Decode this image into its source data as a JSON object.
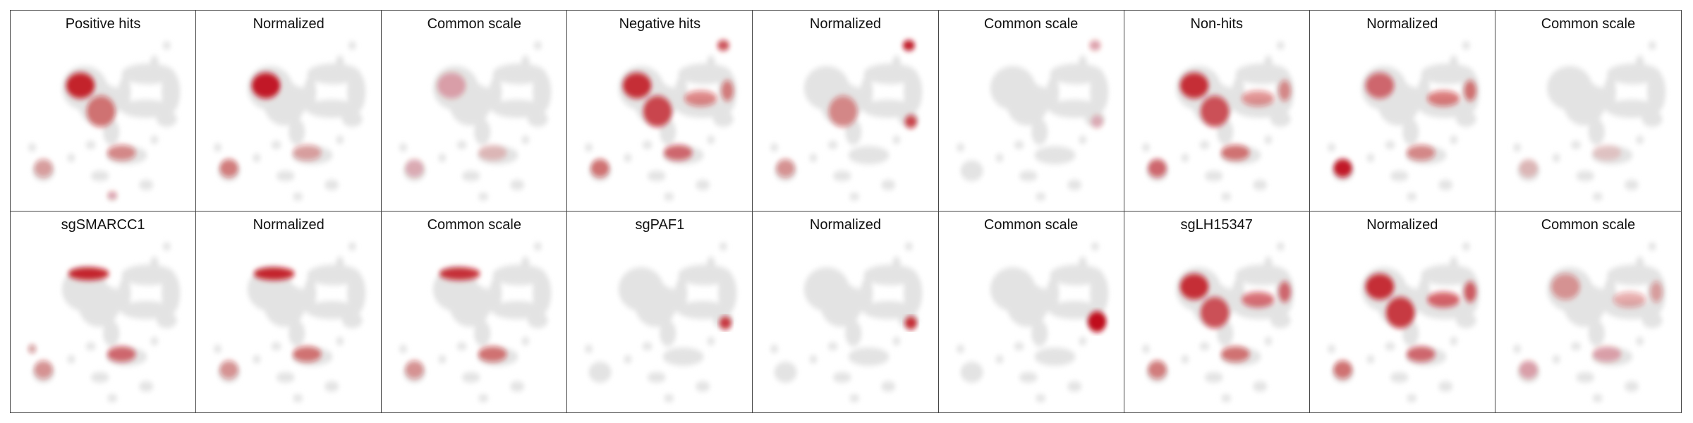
{
  "figure": {
    "base_color": "#e3e3e3",
    "hit_color": "#c0111a"
  },
  "chart_data": [
    {
      "type": "heatmap",
      "title": "Positive hits",
      "highlight_regions": [
        "anterior-left-lobe",
        "left-center",
        "lower-middle-band",
        "far-left-cluster",
        "bottom-small-cluster"
      ],
      "intensity": [
        0.9,
        0.55,
        0.45,
        0.35,
        0.3
      ]
    },
    {
      "type": "heatmap",
      "title": "Normalized",
      "highlight_regions": [
        "anterior-left-lobe",
        "far-left-cluster",
        "lower-middle-band"
      ],
      "intensity": [
        0.95,
        0.5,
        0.35
      ]
    },
    {
      "type": "heatmap",
      "title": "Common scale",
      "highlight_regions": [
        "anterior-left-lobe",
        "far-left-cluster",
        "lower-middle-band"
      ],
      "intensity": [
        0.3,
        0.25,
        0.2
      ]
    },
    {
      "type": "heatmap",
      "title": "Negative hits",
      "highlight_regions": [
        "anterior-left-lobe",
        "left-center",
        "lower-middle-band",
        "far-left-cluster",
        "top-right-blob",
        "right-bridge"
      ],
      "intensity": [
        0.85,
        0.75,
        0.6,
        0.55,
        0.7,
        0.5
      ]
    },
    {
      "type": "heatmap",
      "title": "Normalized",
      "highlight_regions": [
        "top-right-blob",
        "right-arm",
        "left-center",
        "far-left-cluster"
      ],
      "intensity": [
        0.95,
        0.75,
        0.45,
        0.4
      ]
    },
    {
      "type": "heatmap",
      "title": "Common scale",
      "highlight_regions": [
        "top-right-blob",
        "right-arm"
      ],
      "intensity": [
        0.3,
        0.25
      ]
    },
    {
      "type": "heatmap",
      "title": "Non-hits",
      "highlight_regions": [
        "anterior-left-lobe",
        "left-center",
        "lower-middle-band",
        "far-left-cluster",
        "right-bridge"
      ],
      "intensity": [
        0.85,
        0.7,
        0.55,
        0.6,
        0.45
      ]
    },
    {
      "type": "heatmap",
      "title": "Normalized",
      "highlight_regions": [
        "far-left-cluster",
        "anterior-left-lobe",
        "right-bridge",
        "lower-middle-band"
      ],
      "intensity": [
        0.95,
        0.6,
        0.55,
        0.45
      ]
    },
    {
      "type": "heatmap",
      "title": "Common scale",
      "highlight_regions": [
        "far-left-cluster",
        "lower-middle-band"
      ],
      "intensity": [
        0.2,
        0.15
      ]
    },
    {
      "type": "heatmap",
      "title": "sgSMARCC1",
      "highlight_regions": [
        "upper-left-band",
        "lower-middle-band",
        "far-left-cluster",
        "left-edge-dot"
      ],
      "intensity": [
        0.9,
        0.6,
        0.4,
        0.35
      ]
    },
    {
      "type": "heatmap",
      "title": "Normalized",
      "highlight_regions": [
        "upper-left-band",
        "lower-middle-band",
        "far-left-cluster"
      ],
      "intensity": [
        0.9,
        0.55,
        0.4
      ]
    },
    {
      "type": "heatmap",
      "title": "Common scale",
      "highlight_regions": [
        "upper-left-band",
        "lower-middle-band",
        "far-left-cluster"
      ],
      "intensity": [
        0.85,
        0.55,
        0.4
      ]
    },
    {
      "type": "heatmap",
      "title": "sgPAF1",
      "highlight_regions": [
        "right-arm"
      ],
      "intensity": [
        0.8
      ]
    },
    {
      "type": "heatmap",
      "title": "Normalized",
      "highlight_regions": [
        "right-arm"
      ],
      "intensity": [
        0.85
      ]
    },
    {
      "type": "heatmap",
      "title": "Common scale",
      "highlight_regions": [
        "right-arm-strong"
      ],
      "intensity": [
        1.0
      ]
    },
    {
      "type": "heatmap",
      "title": "sgLH15347",
      "highlight_regions": [
        "anterior-left-lobe",
        "left-center",
        "right-bridge",
        "lower-middle-band",
        "far-left-cluster"
      ],
      "intensity": [
        0.85,
        0.7,
        0.6,
        0.55,
        0.5
      ]
    },
    {
      "type": "heatmap",
      "title": "Normalized",
      "highlight_regions": [
        "anterior-left-lobe",
        "left-center",
        "right-bridge",
        "lower-middle-band",
        "far-left-cluster"
      ],
      "intensity": [
        0.85,
        0.8,
        0.65,
        0.6,
        0.55
      ]
    },
    {
      "type": "heatmap",
      "title": "Common scale",
      "highlight_regions": [
        "anterior-left-lobe",
        "right-bridge",
        "lower-middle-band",
        "far-left-cluster"
      ],
      "intensity": [
        0.4,
        0.35,
        0.3,
        0.3
      ]
    }
  ]
}
